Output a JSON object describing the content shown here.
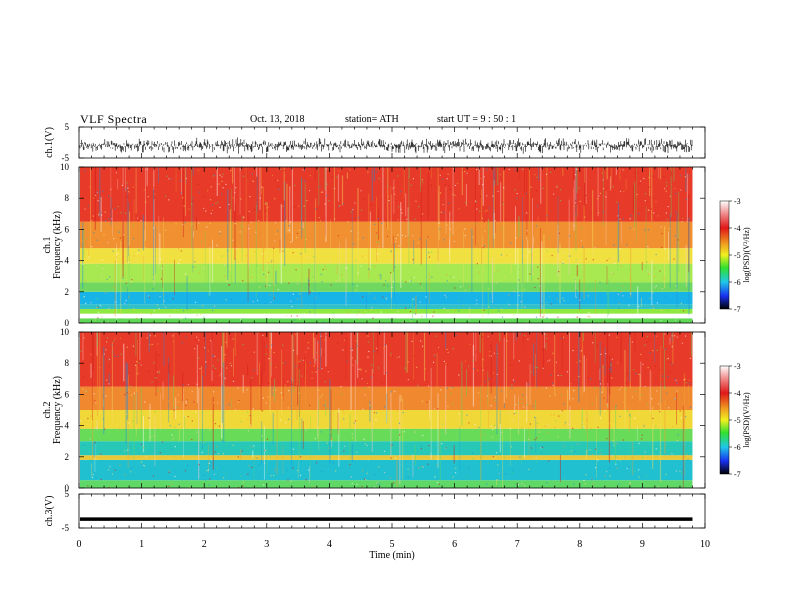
{
  "header": {
    "title": "VLF  Spectra",
    "date": "Oct. 13, 2018",
    "station": "station= ATH",
    "start_time": "start  UT  =   9  : 50 : 1"
  },
  "chart_data": [
    {
      "type": "line",
      "name": "ch1-waveform",
      "ylabel": "ch.1(V)",
      "ylim": [
        -5,
        5
      ],
      "yticks": [
        "5",
        "-5"
      ],
      "xlim": [
        0,
        10
      ],
      "data_extent_min": 9.8,
      "series_color": "#000000",
      "amplitude_note": "dense noise waveform roughly between -3 and 1 V"
    },
    {
      "type": "heatmap",
      "name": "ch1-spectrogram",
      "ylabel": "Frequency  (kHz)",
      "channel_label": "ch.1",
      "ylim": [
        0,
        10
      ],
      "yticks": [
        "0",
        "2",
        "4",
        "6",
        "8",
        "10"
      ],
      "xlim": [
        0,
        10
      ],
      "data_extent_min": 9.8,
      "bands": [
        {
          "from": 0,
          "to": 0.3,
          "color": "#5fd855"
        },
        {
          "from": 0.3,
          "to": 0.6,
          "color": "#ffffff"
        },
        {
          "from": 0.6,
          "to": 0.9,
          "color": "#8fe840"
        },
        {
          "from": 0.9,
          "to": 1.2,
          "color": "#30c0c8"
        },
        {
          "from": 1.2,
          "to": 2.0,
          "color": "#18b4e8"
        },
        {
          "from": 2.0,
          "to": 2.6,
          "color": "#70d860"
        },
        {
          "from": 2.6,
          "to": 3.8,
          "color": "#a8e850"
        },
        {
          "from": 3.8,
          "to": 4.8,
          "color": "#f0e040"
        },
        {
          "from": 4.8,
          "to": 6.5,
          "color": "#f09030"
        },
        {
          "from": 6.5,
          "to": 10,
          "color": "#e83a28"
        }
      ],
      "colorbar": {
        "label": "log(PSD)(V²/Hz)",
        "range": [
          -7,
          -3
        ],
        "ticks": [
          "-3",
          "-4",
          "-5",
          "-6",
          "-7"
        ]
      }
    },
    {
      "type": "heatmap",
      "name": "ch2-spectrogram",
      "ylabel": "Frequency  (kHz)",
      "channel_label": "ch.2",
      "ylim": [
        0,
        10
      ],
      "yticks": [
        "0",
        "2",
        "4",
        "6",
        "8",
        "10"
      ],
      "xlim": [
        0,
        10
      ],
      "data_extent_min": 9.8,
      "bands": [
        {
          "from": 0,
          "to": 0.5,
          "color": "#60d868"
        },
        {
          "from": 0.5,
          "to": 1.8,
          "color": "#20c0d0"
        },
        {
          "from": 1.8,
          "to": 2.1,
          "color": "#e8c838"
        },
        {
          "from": 2.1,
          "to": 3.0,
          "color": "#28c8b8"
        },
        {
          "from": 3.0,
          "to": 3.8,
          "color": "#68dc58"
        },
        {
          "from": 3.8,
          "to": 5.0,
          "color": "#f0d838"
        },
        {
          "from": 5.0,
          "to": 6.5,
          "color": "#f08830"
        },
        {
          "from": 6.5,
          "to": 10,
          "color": "#e83a28"
        }
      ],
      "colorbar": {
        "label": "log(PSD)(V²/Hz)",
        "range": [
          -7,
          -3
        ],
        "ticks": [
          "-3",
          "-4",
          "-5",
          "-6",
          "-7"
        ]
      }
    },
    {
      "type": "line",
      "name": "ch3-waveform",
      "ylabel": "ch.3(V)",
      "ylim": [
        -5,
        5
      ],
      "yticks": [
        "5",
        "-5"
      ],
      "xlim": [
        0,
        10
      ],
      "data_extent_min": 9.8,
      "level_v": -2.4,
      "series_color": "#000000"
    }
  ],
  "xaxis": {
    "label": "Time  (min)",
    "ticks": [
      "0",
      "1",
      "2",
      "3",
      "4",
      "5",
      "6",
      "7",
      "8",
      "9",
      "10"
    ],
    "range": [
      0,
      10
    ]
  },
  "colors": {
    "accent_red": "#e83a28",
    "frame": "#000000"
  }
}
